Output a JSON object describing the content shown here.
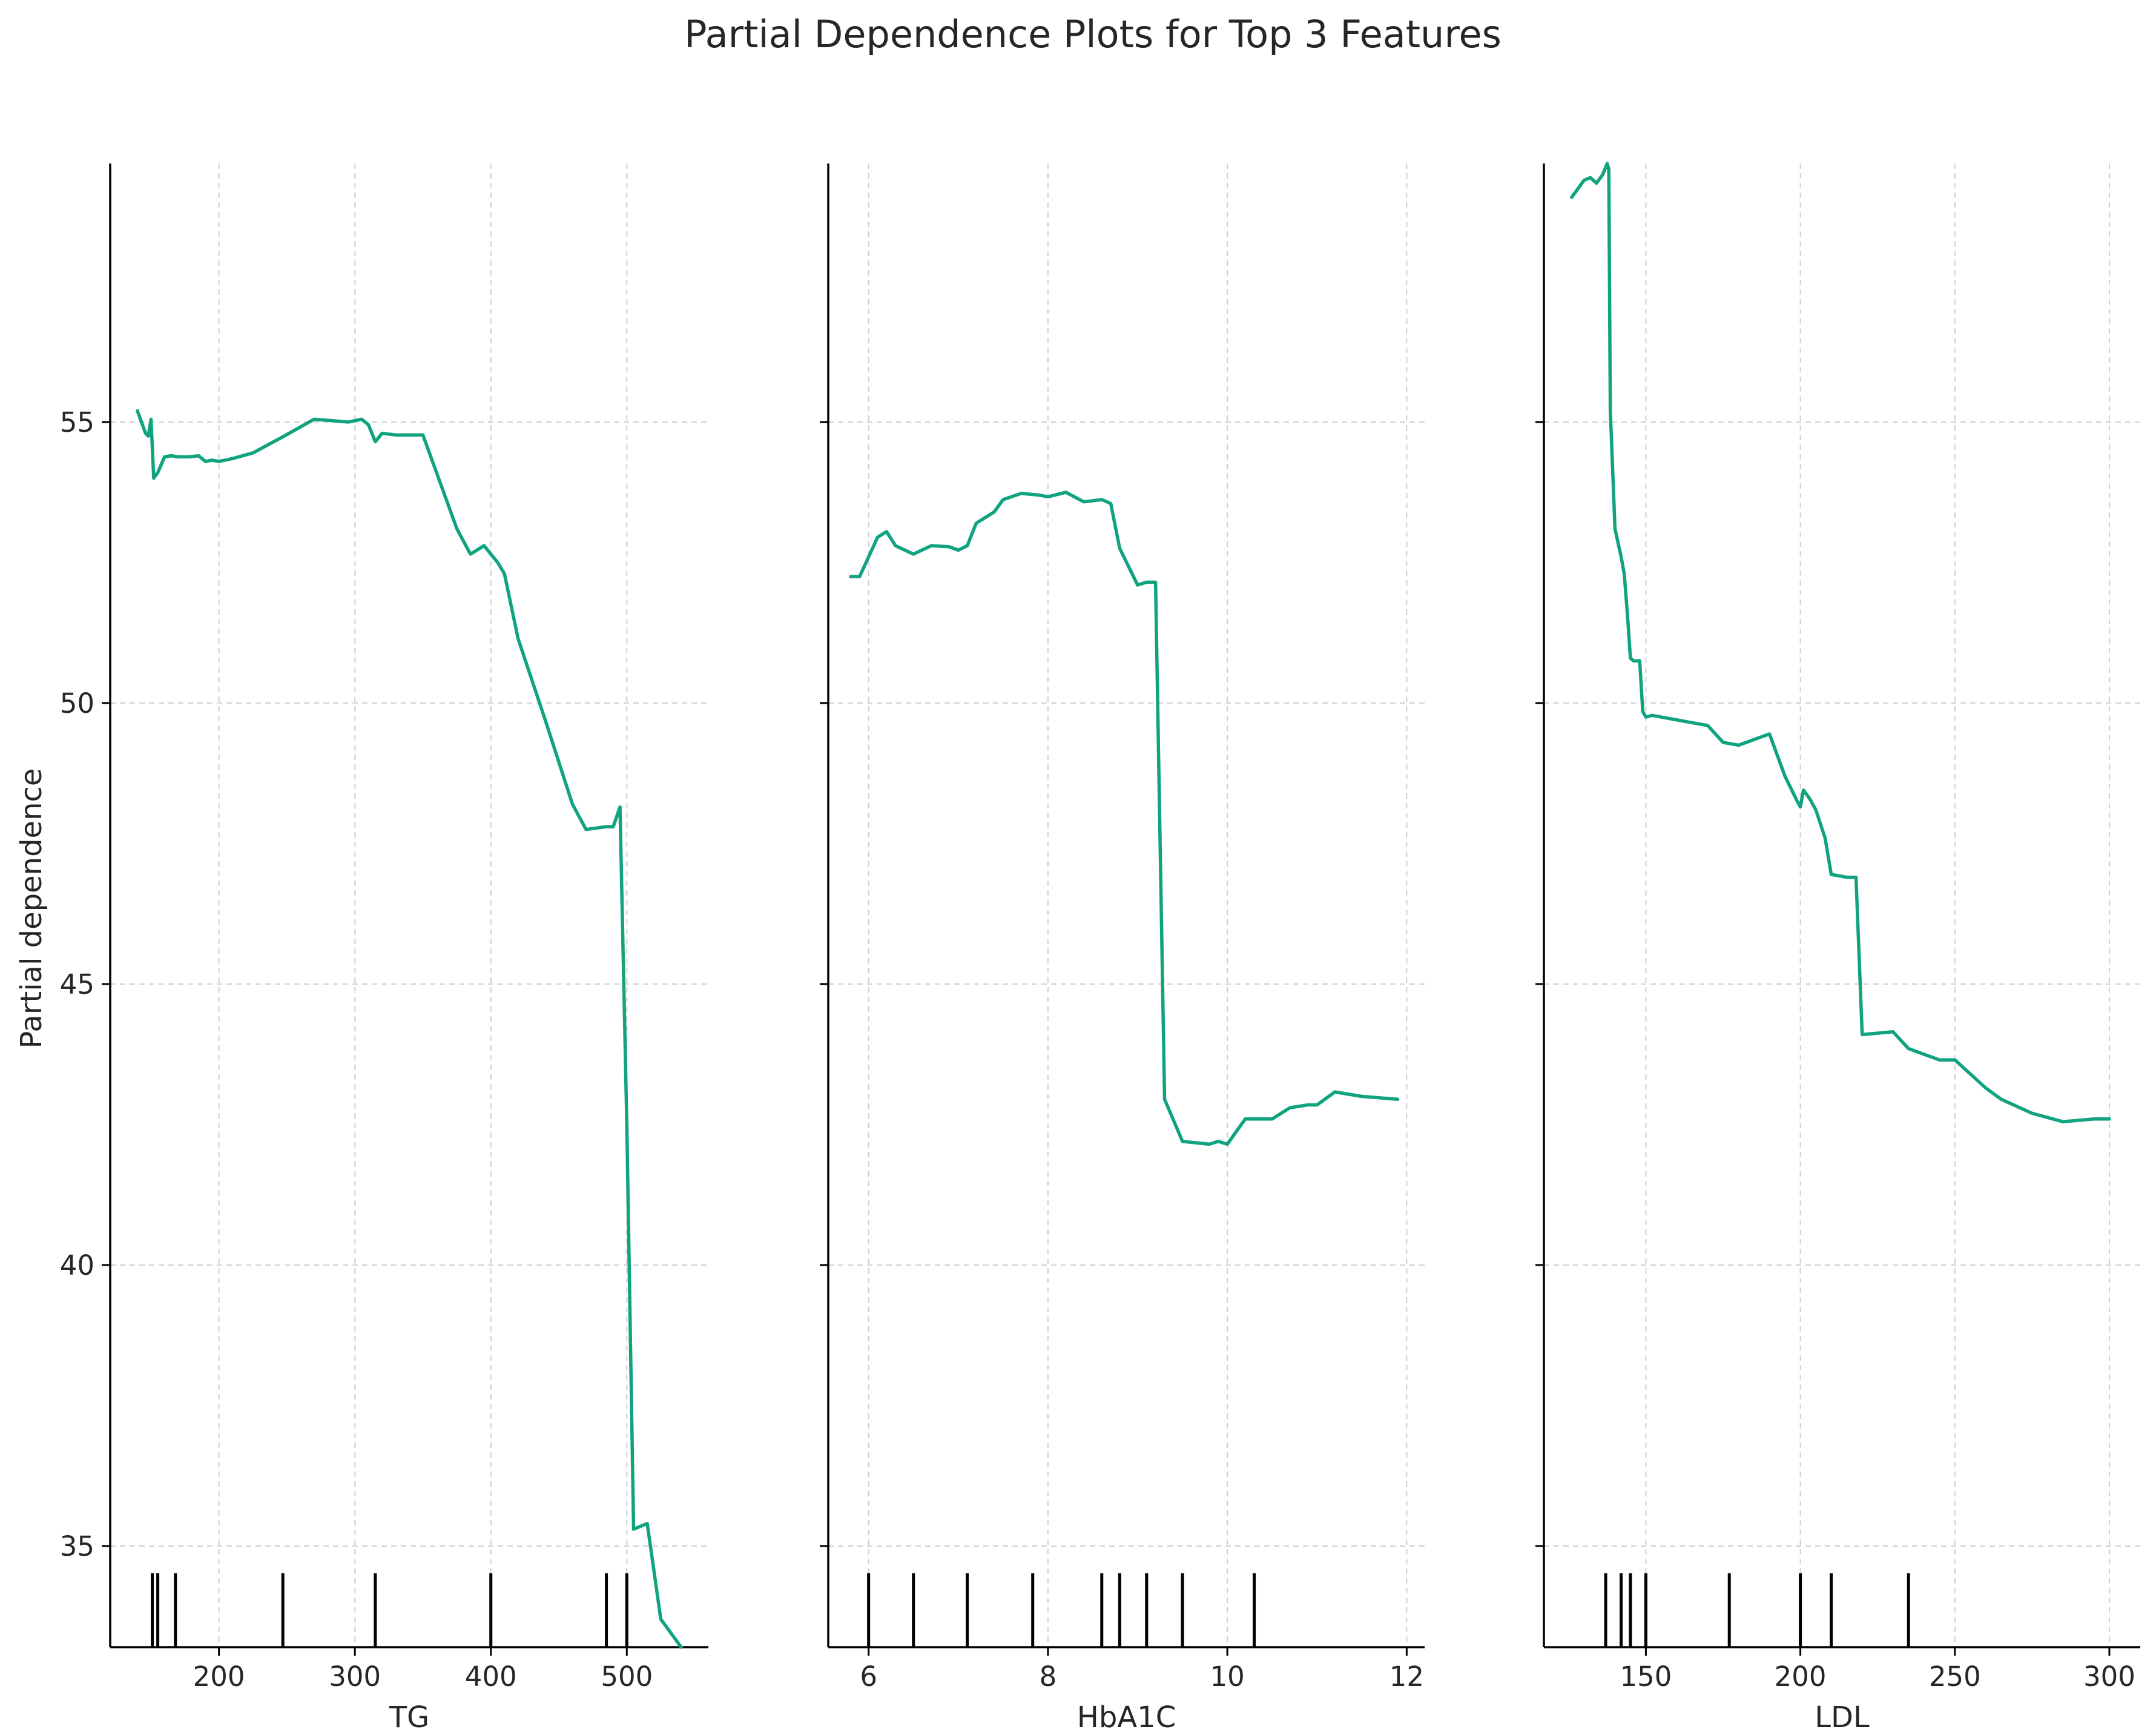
{
  "title": "Partial Dependence Plots for Top 3 Features",
  "colors": {
    "line": "#10a37f",
    "rug": "#000000",
    "grid": "#cfcfcf"
  },
  "chart_data": {
    "type": "line",
    "title": "Partial Dependence Plots for Top 3 Features",
    "ylabel": "Partial dependence",
    "ylim": [
      33.2,
      59.6
    ],
    "yticks": [
      35,
      40,
      45,
      50,
      55
    ],
    "shared_y": true,
    "grid": true,
    "subplots": [
      {
        "feature": "TG",
        "xlabel": "TG",
        "xlim": [
          120,
          560
        ],
        "xticks": [
          200,
          300,
          400,
          500
        ],
        "deciles": [
          151,
          155,
          168,
          247,
          315,
          400,
          485,
          500
        ],
        "series": {
          "x": [
            140,
            146,
            148,
            150,
            152,
            155,
            160,
            165,
            170,
            178,
            185,
            190,
            195,
            200,
            210,
            225,
            248,
            270,
            295,
            305,
            310,
            315,
            320,
            330,
            350,
            375,
            385,
            395,
            405,
            410,
            420,
            440,
            460,
            470,
            485,
            490,
            495,
            500,
            505,
            515,
            525,
            540
          ],
          "y": [
            55.2,
            54.8,
            54.75,
            55.05,
            54.0,
            54.1,
            54.38,
            54.4,
            54.38,
            54.38,
            54.4,
            54.3,
            54.32,
            54.3,
            54.35,
            54.45,
            54.75,
            55.05,
            55.0,
            55.05,
            54.95,
            54.65,
            54.8,
            54.77,
            54.77,
            53.1,
            52.65,
            52.8,
            52.5,
            52.3,
            51.15,
            49.7,
            48.2,
            47.75,
            47.8,
            47.8,
            48.15,
            42.5,
            35.3,
            35.4,
            33.7,
            33.2
          ]
        }
      },
      {
        "feature": "HbA1C",
        "xlabel": "HbA1C",
        "xlim": [
          5.55,
          12.2
        ],
        "xticks": [
          6,
          8,
          10,
          12
        ],
        "deciles": [
          6.0,
          6.5,
          7.1,
          7.83,
          8.6,
          8.8,
          9.1,
          9.5,
          10.3
        ],
        "series": {
          "x": [
            5.8,
            5.9,
            6.1,
            6.2,
            6.3,
            6.5,
            6.7,
            6.9,
            7.0,
            7.1,
            7.2,
            7.3,
            7.4,
            7.5,
            7.7,
            7.9,
            8.0,
            8.2,
            8.4,
            8.5,
            8.6,
            8.7,
            8.8,
            9.0,
            9.1,
            9.2,
            9.3,
            9.5,
            9.8,
            9.9,
            10.0,
            10.2,
            10.3,
            10.5,
            10.7,
            10.9,
            11.0,
            11.2,
            11.5,
            11.9
          ],
          "y": [
            52.25,
            52.25,
            52.95,
            53.05,
            52.8,
            52.65,
            52.8,
            52.78,
            52.72,
            52.8,
            53.2,
            53.3,
            53.4,
            53.62,
            53.73,
            53.7,
            53.67,
            53.75,
            53.58,
            53.6,
            53.62,
            53.55,
            52.75,
            52.1,
            52.15,
            52.15,
            42.95,
            42.2,
            42.15,
            42.2,
            42.15,
            42.6,
            42.6,
            42.6,
            42.8,
            42.85,
            42.85,
            43.08,
            43.0,
            42.95
          ]
        }
      },
      {
        "feature": "LDL",
        "xlabel": "LDL",
        "xlim": [
          117,
          310
        ],
        "xticks": [
          150,
          200,
          250,
          300
        ],
        "deciles": [
          137,
          142,
          145,
          150,
          177,
          200,
          210,
          235
        ],
        "series": {
          "x": [
            126,
            130,
            132,
            134,
            136,
            137.5,
            138,
            138.5,
            139,
            140,
            141,
            142,
            143,
            144,
            145,
            146,
            148,
            149,
            150,
            152,
            165,
            170,
            175,
            180,
            190,
            195,
            199,
            200,
            201,
            203,
            205,
            208,
            210,
            215,
            218,
            220,
            230,
            235,
            245,
            250,
            260,
            265,
            275,
            285,
            295,
            300
          ],
          "y": [
            59.0,
            59.3,
            59.35,
            59.25,
            59.4,
            59.6,
            59.5,
            55.2,
            54.5,
            53.1,
            52.85,
            52.6,
            52.3,
            51.6,
            50.8,
            50.75,
            50.75,
            49.85,
            49.75,
            49.78,
            49.65,
            49.6,
            49.3,
            49.25,
            49.45,
            48.7,
            48.25,
            48.15,
            48.45,
            48.3,
            48.1,
            47.6,
            46.95,
            46.9,
            46.9,
            44.1,
            44.15,
            43.85,
            43.65,
            43.65,
            43.15,
            42.95,
            42.7,
            42.55,
            42.6,
            42.6
          ]
        }
      }
    ]
  }
}
